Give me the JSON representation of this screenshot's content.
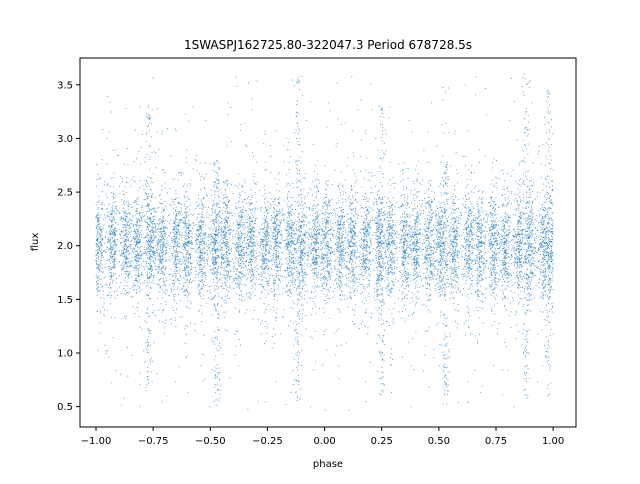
{
  "chart_data": {
    "type": "scatter",
    "title": "1SWASPJ162725.80-322047.3 Period 678728.5s",
    "xlabel": "phase",
    "ylabel": "flux",
    "xlim": [
      -1.07,
      1.1
    ],
    "ylim": [
      0.31,
      3.75
    ],
    "xticks": [
      -1.0,
      -0.75,
      -0.5,
      -0.25,
      0.0,
      0.25,
      0.5,
      0.75,
      1.0
    ],
    "xtick_labels": [
      "−1.00",
      "−0.75",
      "−0.50",
      "−0.25",
      "0.00",
      "0.25",
      "0.50",
      "0.75",
      "1.00"
    ],
    "yticks": [
      0.5,
      1.0,
      1.5,
      2.0,
      2.5,
      3.0,
      3.5
    ],
    "ytick_labels": [
      "0.5",
      "1.0",
      "1.5",
      "2.0",
      "2.5",
      "3.0",
      "3.5"
    ],
    "grid": false,
    "legend": "none",
    "marker_color": "#1f77b4",
    "series": [
      {
        "phase_clusters": [
          -0.99,
          -0.93,
          -0.87,
          -0.82,
          -0.76,
          -0.71,
          -0.65,
          -0.6,
          -0.54,
          -0.48,
          -0.43,
          -0.37,
          -0.32,
          -0.26,
          -0.21,
          -0.15,
          -0.1,
          -0.04,
          0.01,
          0.07,
          0.12,
          0.18,
          0.24,
          0.29,
          0.35,
          0.4,
          0.46,
          0.51,
          0.57,
          0.63,
          0.68,
          0.74,
          0.79,
          0.85,
          0.9,
          0.96,
          1.0
        ],
        "flux_center": 2.0,
        "flux_core_range": [
          1.6,
          2.45
        ],
        "flux_full_range": [
          0.45,
          3.6
        ],
        "mirrored_about_phase_zero": true,
        "spikes": [
          {
            "phase": -0.12,
            "flux_max": 3.6,
            "flux_min": 0.5
          },
          {
            "phase": 0.88,
            "flux_max": 3.6,
            "flux_min": 0.5
          },
          {
            "phase": -0.77,
            "flux_max": 3.3,
            "flux_min": 0.6
          },
          {
            "phase": 0.25,
            "flux_max": 3.3,
            "flux_min": 0.6
          },
          {
            "phase": 0.98,
            "flux_max": 3.5,
            "flux_min": 0.6
          },
          {
            "phase": -0.47,
            "flux_max": 2.8,
            "flux_min": 0.5
          },
          {
            "phase": 0.53,
            "flux_max": 2.8,
            "flux_min": 0.5
          }
        ]
      }
    ]
  }
}
